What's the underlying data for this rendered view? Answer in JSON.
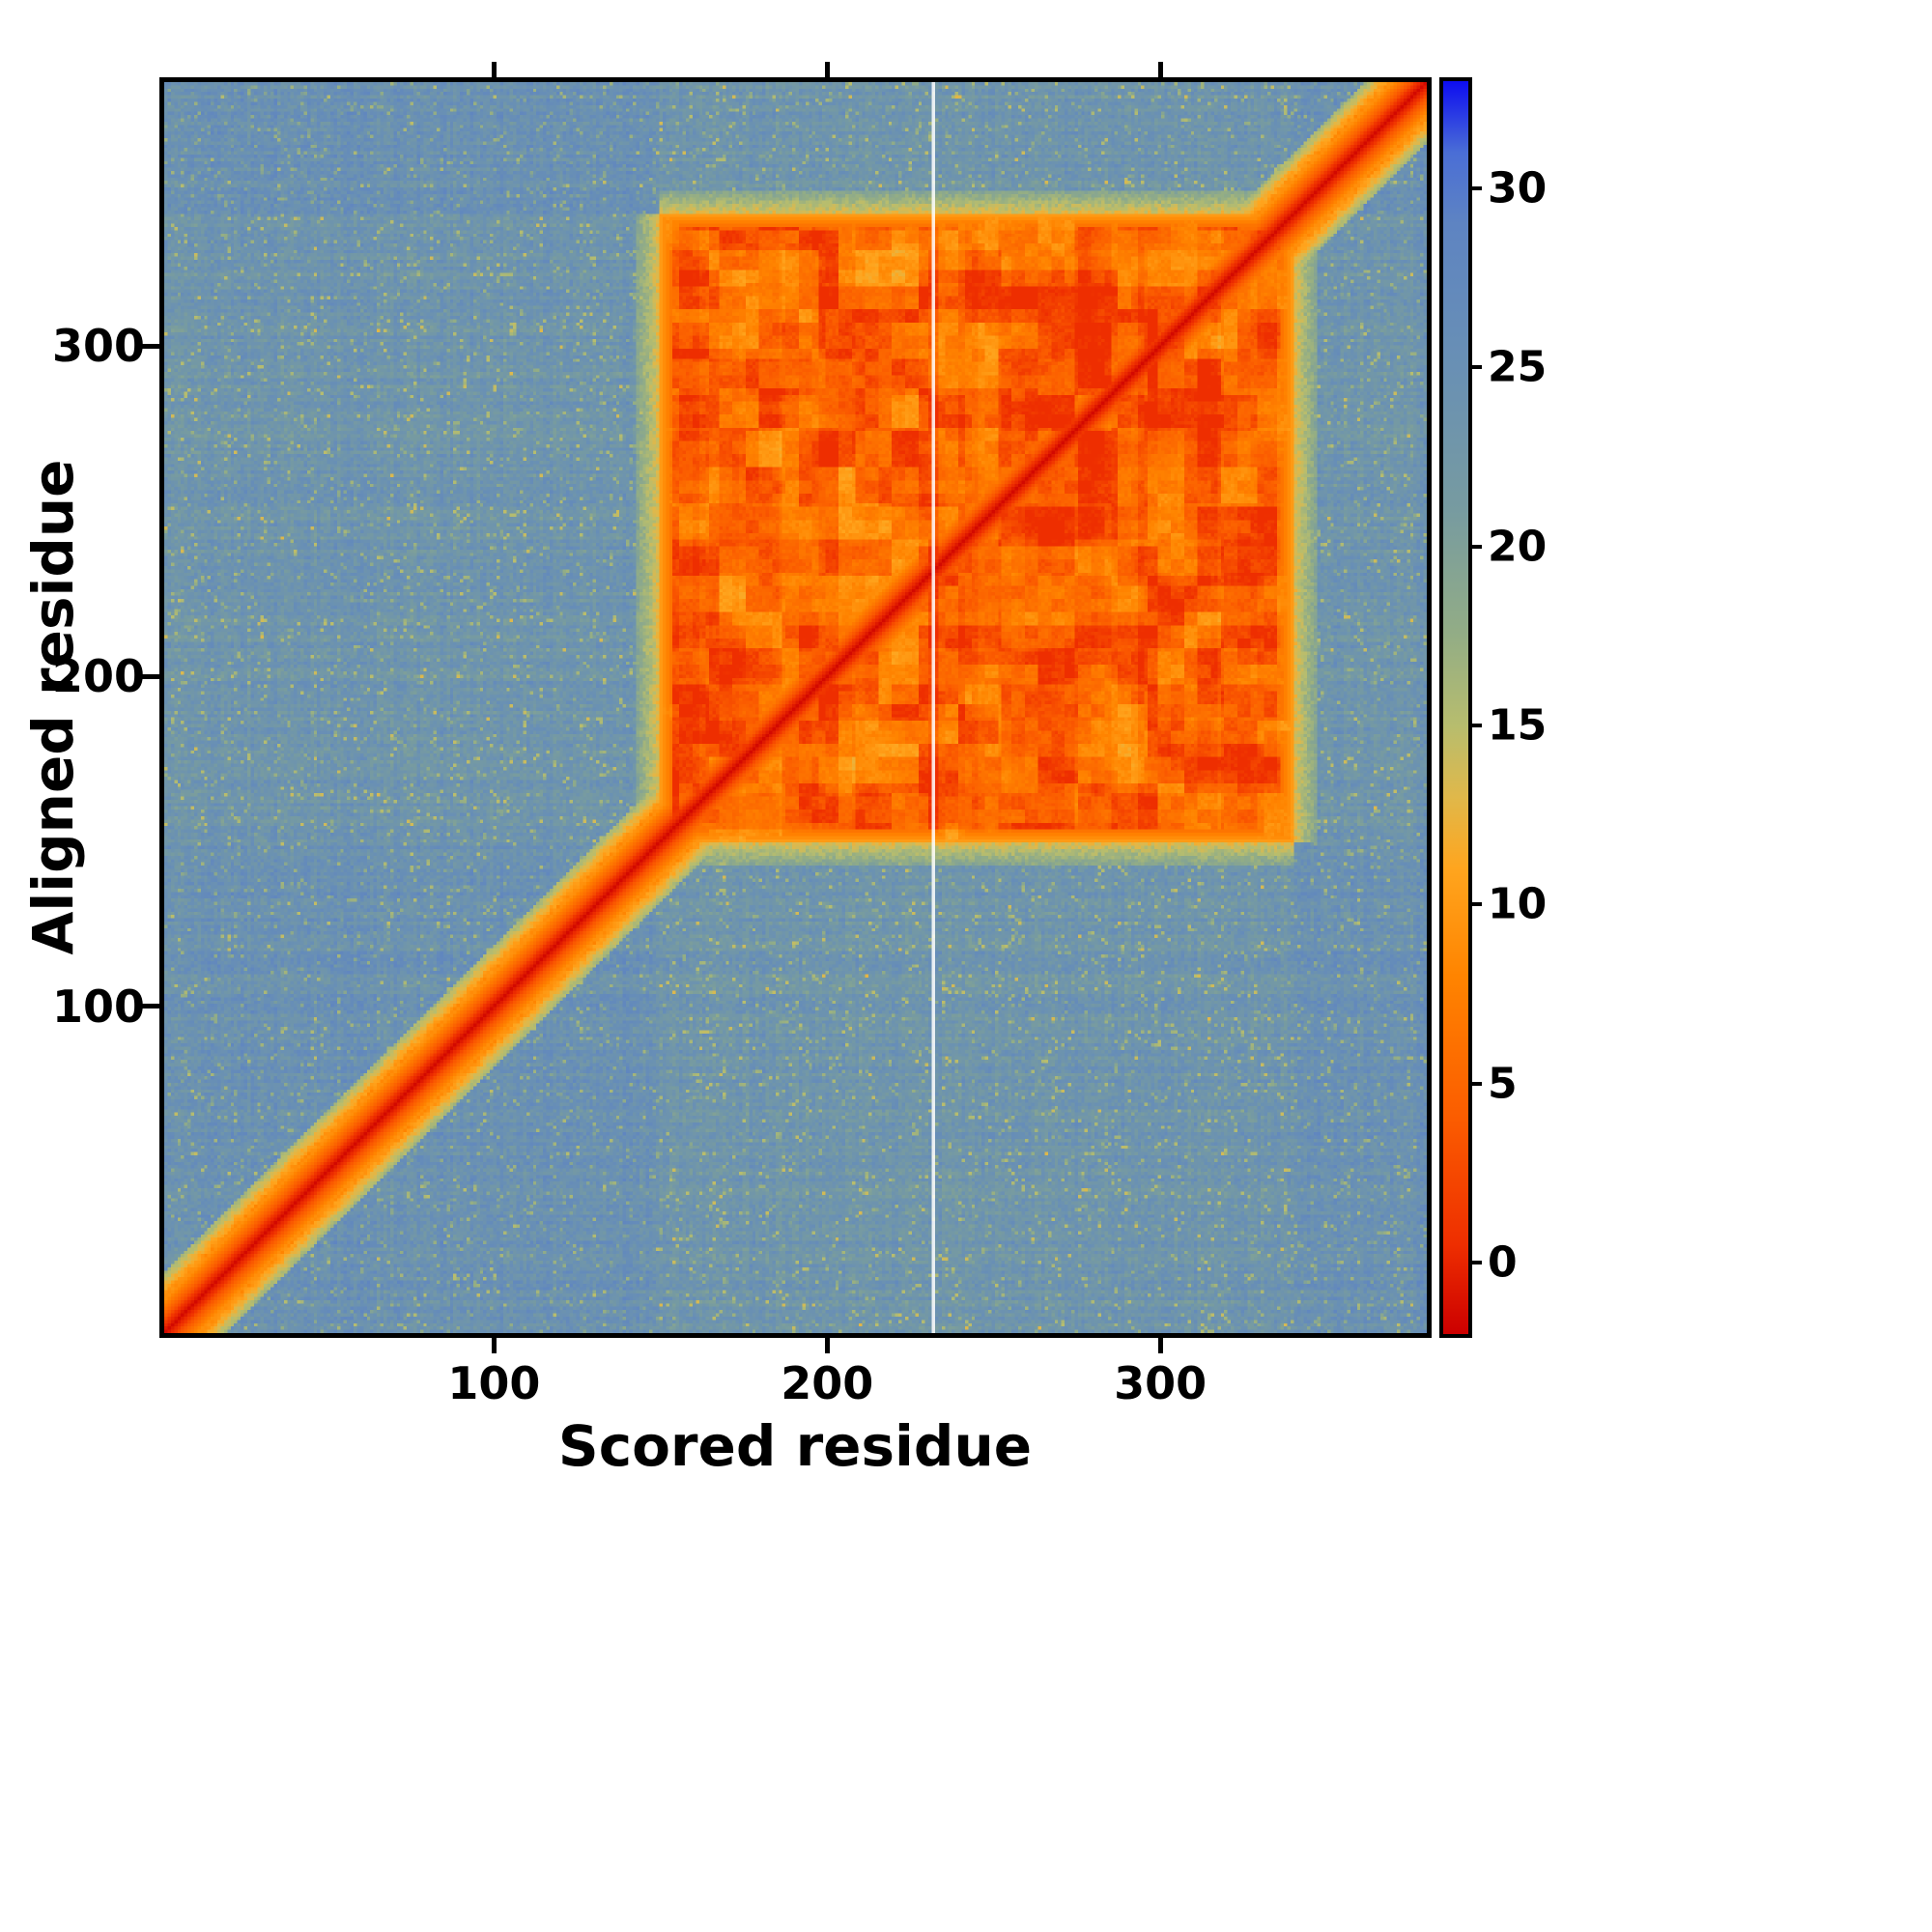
{
  "figure": {
    "background": "#ffffff",
    "frame_color": "#000000",
    "text_color": "#000000"
  },
  "chart_data": {
    "type": "heatmap",
    "title": "",
    "xlabel": "Scored residue",
    "ylabel": "Aligned residue",
    "x_range": [
      1,
      380
    ],
    "y_range": [
      1,
      380
    ],
    "x_ticks": [
      100,
      200,
      300
    ],
    "y_ticks": [
      100,
      200,
      300
    ],
    "grid": false,
    "colorbar_position": "right",
    "colorbar_ticks": [
      0,
      5,
      10,
      15,
      20,
      25,
      30
    ],
    "value_range": [
      -2,
      33
    ],
    "colormap_stops": [
      {
        "v": -2,
        "c": "#cc0000"
      },
      {
        "v": 0.5,
        "c": "#ee2e00"
      },
      {
        "v": 4,
        "c": "#fb5c00"
      },
      {
        "v": 8,
        "c": "#ff8400"
      },
      {
        "v": 11,
        "c": "#ffa51e"
      },
      {
        "v": 13,
        "c": "#e0b84a"
      },
      {
        "v": 15,
        "c": "#b7bd6e"
      },
      {
        "v": 17.5,
        "c": "#93ad85"
      },
      {
        "v": 21,
        "c": "#779ba0"
      },
      {
        "v": 25,
        "c": "#6990b4"
      },
      {
        "v": 29,
        "c": "#5e84c2"
      },
      {
        "v": 31,
        "c": "#4a6ed6"
      },
      {
        "v": 33,
        "c": "#0d0df0"
      }
    ],
    "structure": {
      "description": "Aligned-error style residue matrix: low error (red) along the main diagonal over the full length, a square low-error domain block between residues ~150 and ~340 (orange/red with darker red patches and vertical banding), high-error steel-blue background elsewhere with faint green speckle, yellow-green halo around the diagonal and block edges, and a thin white missing-data column near residue 232.",
      "background_value": 24.5,
      "diagonal_value": -1.5,
      "diagonal_band_halfwidth": 4,
      "low_error_domain": {
        "start": 150,
        "end": 340,
        "mean_value": 6.5
      },
      "missing_data_column": 232,
      "noise_amplitude": 4.2
    }
  }
}
